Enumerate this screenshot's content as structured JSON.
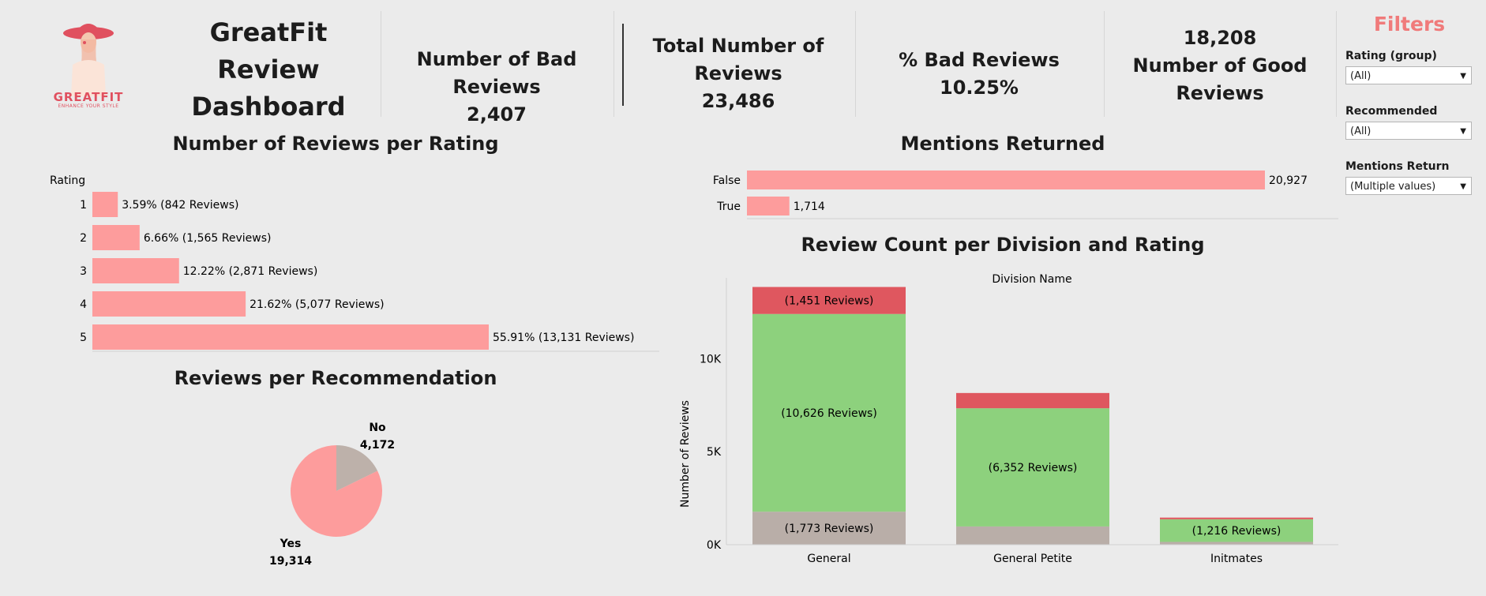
{
  "header": {
    "logo_text": "GREATFIT",
    "logo_subtext": "ENHANCE YOUR STYLE",
    "title_lines": [
      "GreatFit",
      "Review",
      "Dashboard"
    ]
  },
  "kpis": {
    "bad_reviews": {
      "label": "Number of Bad Reviews",
      "value": "2,407"
    },
    "total_reviews": {
      "label_line1": "Total Number of",
      "label_line2": "Reviews",
      "value": "23,486"
    },
    "pct_bad": {
      "label": "% Bad Reviews",
      "value": "10.25%"
    },
    "good_reviews": {
      "value": "18,208",
      "label_line1": "Number of Good",
      "label_line2": "Reviews"
    }
  },
  "filters": {
    "title": "Filters",
    "rating_group": {
      "label": "Rating (group)",
      "value": "(All)"
    },
    "recommended": {
      "label": "Recommended",
      "value": "(All)"
    },
    "mentions_return": {
      "label": "Mentions Return",
      "value": "(Multiple values)"
    }
  },
  "colors": {
    "salmon": "#fd9c9c",
    "red": "#df575f",
    "green": "#8dd17d",
    "taupe": "#b9aea8",
    "pie_no": "#bdb1aa",
    "filter_title": "#f07a7a"
  },
  "chart_data": [
    {
      "type": "bar",
      "orientation": "horizontal",
      "title": "Number of Reviews per Rating",
      "ylabel": "Rating",
      "categories": [
        "1",
        "2",
        "3",
        "4",
        "5"
      ],
      "values": [
        842,
        1565,
        2871,
        5077,
        13131
      ],
      "labels": [
        "3.59% (842 Reviews)",
        "6.66% (1,565 Reviews)",
        "12.22% (2,871 Reviews)",
        "21.62% (5,077 Reviews)",
        "55.91% (13,131 Reviews)"
      ]
    },
    {
      "type": "bar",
      "orientation": "horizontal",
      "title": "Mentions Returned",
      "categories": [
        "False",
        "True"
      ],
      "values": [
        20927,
        1714
      ],
      "labels": [
        "20,927",
        "1,714"
      ]
    },
    {
      "type": "pie",
      "title": "Reviews per Recommendation",
      "slices": [
        {
          "name": "No",
          "value": 4172,
          "label": "4,172"
        },
        {
          "name": "Yes",
          "value": 19314,
          "label": "19,314"
        }
      ]
    },
    {
      "type": "bar",
      "stacked": true,
      "title": "Review Count per Division and Rating",
      "xlabel": "Division Name",
      "ylabel": "Number of Reviews",
      "categories": [
        "General",
        "General Petite",
        "Initmates"
      ],
      "yticks": [
        "0K",
        "5K",
        "10K"
      ],
      "ylim": [
        0,
        14000
      ],
      "series": [
        {
          "values": [
            1773,
            980,
            150
          ],
          "labels": [
            "(1,773 Reviews)",
            "",
            ""
          ]
        },
        {
          "values": [
            10626,
            6352,
            1216
          ],
          "labels": [
            "(10,626 Reviews)",
            "(6,352 Reviews)",
            "(1,216 Reviews)"
          ]
        },
        {
          "values": [
            1451,
            820,
            90
          ],
          "labels": [
            "(1,451 Reviews)",
            "",
            ""
          ]
        }
      ]
    }
  ]
}
